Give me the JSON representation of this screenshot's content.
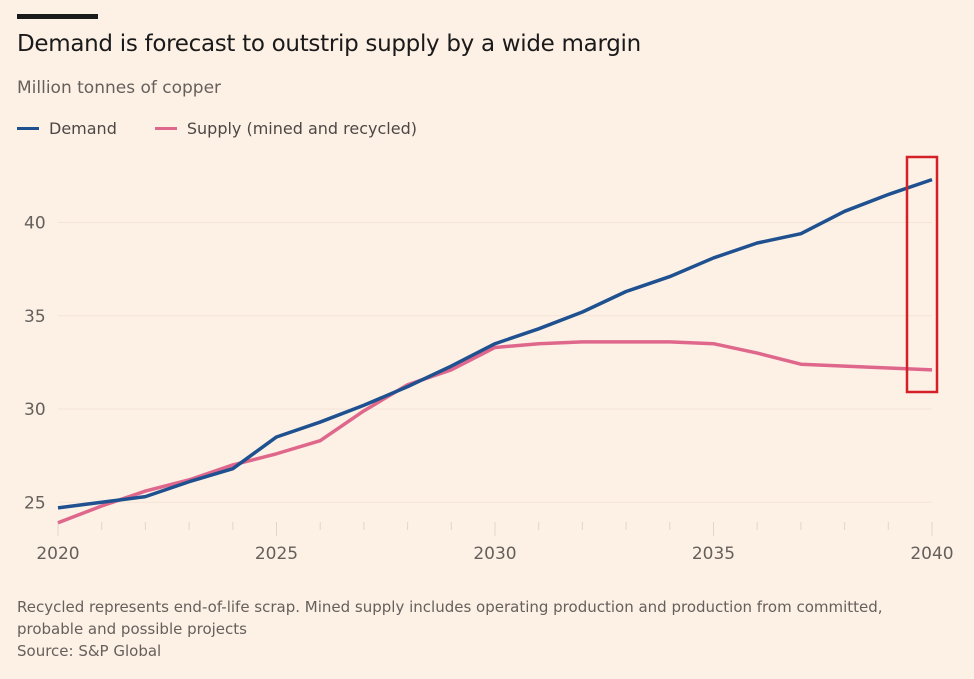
{
  "chart_data": {
    "type": "line",
    "title": "Demand is forecast to outstrip supply by a wide margin",
    "subtitle": "Million tonnes of copper",
    "xlabel": "",
    "ylabel": "",
    "x": [
      2020,
      2021,
      2022,
      2023,
      2024,
      2025,
      2026,
      2027,
      2028,
      2029,
      2030,
      2031,
      2032,
      2033,
      2034,
      2035,
      2036,
      2037,
      2038,
      2039,
      2040
    ],
    "xlim": [
      2020,
      2040
    ],
    "ylim": [
      23,
      43.5
    ],
    "xticks": [
      "2020",
      "2025",
      "2030",
      "2035",
      "2040"
    ],
    "yticks": [
      "25",
      "30",
      "35",
      "40"
    ],
    "grid": true,
    "legend": "top-left",
    "series": [
      {
        "name": "Demand",
        "color": "#1f5190",
        "values": [
          24.7,
          25.0,
          25.3,
          26.1,
          26.8,
          28.5,
          29.3,
          30.2,
          31.2,
          32.3,
          33.5,
          34.3,
          35.2,
          36.3,
          37.1,
          38.1,
          38.9,
          39.4,
          40.6,
          41.5,
          42.3
        ]
      },
      {
        "name": "Supply (mined and recycled)",
        "color": "#e0678c",
        "values": [
          23.9,
          24.8,
          25.6,
          26.2,
          27.0,
          27.6,
          28.3,
          29.9,
          31.3,
          32.1,
          33.3,
          33.5,
          33.6,
          33.6,
          33.6,
          33.5,
          33.0,
          32.4,
          32.3,
          32.2,
          32.1
        ]
      }
    ],
    "annotation": {
      "type": "highlight-box",
      "x": 2040,
      "color": "#d42027"
    },
    "footnote": "Recycled represents end-of-life scrap. Mined supply includes operating production and production from committed, probable and possible projects",
    "source": "Source: S&P Global"
  }
}
